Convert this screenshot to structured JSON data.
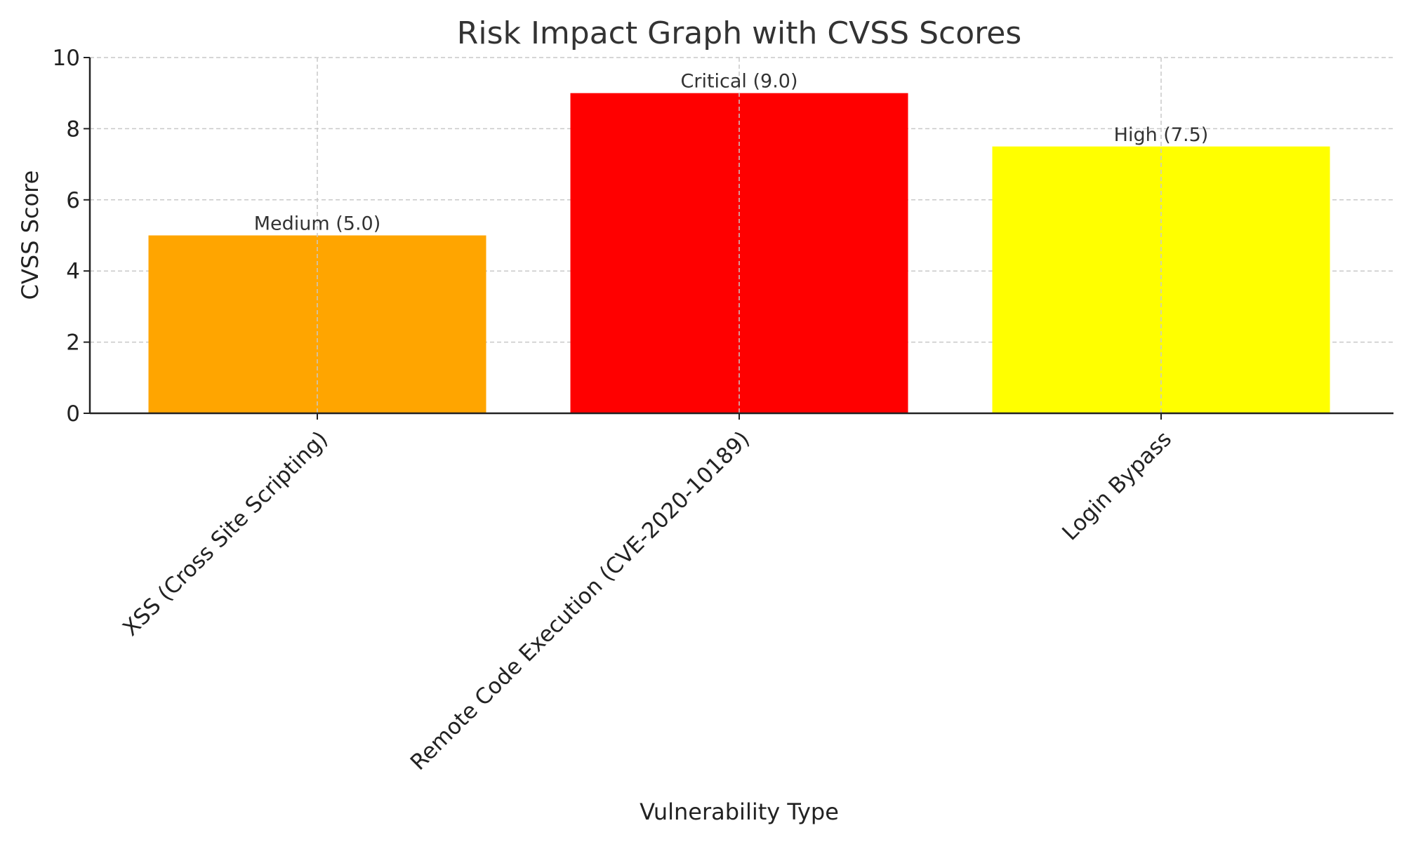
{
  "chart_data": {
    "type": "bar",
    "title": "Risk Impact Graph with CVSS Scores",
    "xlabel": "Vulnerability Type",
    "ylabel": "CVSS Score",
    "categories": [
      "XSS (Cross Site Scripting)",
      "Remote Code Execution (CVE-2020-10189)",
      "Login Bypass"
    ],
    "values": [
      5.0,
      9.0,
      7.5
    ],
    "data_labels": [
      "Medium (5.0)",
      "Critical (9.0)",
      "High (7.5)"
    ],
    "colors": [
      "#FFA500",
      "#FF0000",
      "#FFFF00"
    ],
    "ylim": [
      0,
      10
    ],
    "yticks": [
      0,
      2,
      4,
      6,
      8,
      10
    ],
    "grid": true
  }
}
